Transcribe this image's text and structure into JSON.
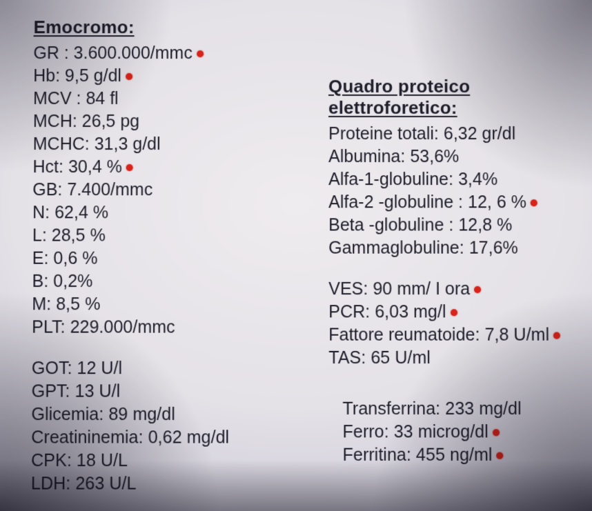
{
  "colors": {
    "text": "#1e1e2a",
    "dot": "#d8231a",
    "bg_center": "#efecef",
    "bg_edge": "#5a5872"
  },
  "typography": {
    "heading_fontsize": 26,
    "row_fontsize": 25,
    "font_family": "Arial"
  },
  "left": {
    "section1_title": "Emocromo:",
    "rows1": [
      {
        "label": "GR :",
        "value": "3.600.000/mmc",
        "flag": true
      },
      {
        "label": "Hb:",
        "value": "9,5 g/dl",
        "flag": true
      },
      {
        "label": "MCV :",
        "value": "84 fl",
        "flag": false
      },
      {
        "label": "MCH:",
        "value": "26,5 pg",
        "flag": false
      },
      {
        "label": "MCHC:",
        "value": "31,3 g/dl",
        "flag": false
      },
      {
        "label": "Hct:",
        "value": "30,4 %",
        "flag": true
      },
      {
        "label": "GB:",
        "value": "7.400/mmc",
        "flag": false
      },
      {
        "label": "N:",
        "value": "62,4 %",
        "flag": false
      },
      {
        "label": "L:",
        "value": "28,5 %",
        "flag": false
      },
      {
        "label": "E:",
        "value": "0,6 %",
        "flag": false
      },
      {
        "label": "B:",
        "value": "0,2%",
        "flag": false
      },
      {
        "label": "M:",
        "value": "8,5 %",
        "flag": false
      },
      {
        "label": "PLT:",
        "value": "229.000/mmc",
        "flag": false
      }
    ],
    "rows2": [
      {
        "label": "GOT:",
        "value": "12 U/l",
        "flag": false
      },
      {
        "label": "GPT:",
        "value": "13 U/l",
        "flag": false
      },
      {
        "label": "Glicemia:",
        "value": "89 mg/dl",
        "flag": false
      },
      {
        "label": "Creatininemia:",
        "value": "0,62 mg/dl",
        "flag": false
      },
      {
        "label": "CPK:",
        "value": "18 U/L",
        "flag": false
      },
      {
        "label": "LDH:",
        "value": "263 U/L",
        "flag": false
      }
    ]
  },
  "right": {
    "section1_title": "Quadro proteico elettroforetico:",
    "rows1": [
      {
        "label": "Proteine totali:",
        "value": "6,32 gr/dl",
        "flag": false
      },
      {
        "label": "Albumina:",
        "value": "53,6%",
        "flag": false
      },
      {
        "label": "Alfa-1-globuline:",
        "value": "3,4%",
        "flag": false
      },
      {
        "label": "Alfa-2 -globuline :",
        "value": "12, 6 %",
        "flag": true
      },
      {
        "label": "Beta -globuline  :",
        "value": "12,8 %",
        "flag": false
      },
      {
        "label": "Gammaglobuline:",
        "value": "17,6%",
        "flag": false
      }
    ],
    "rows2": [
      {
        "label": "VES:",
        "value": "90 mm/ I ora",
        "flag": true
      },
      {
        "label": "PCR:",
        "value": "6,03 mg/l",
        "flag": true
      },
      {
        "label": "Fattore reumatoide:",
        "value": "7,8 U/ml",
        "flag": true
      },
      {
        "label": "TAS:",
        "value": "65 U/ml",
        "flag": false
      }
    ],
    "rows3": [
      {
        "label": "Transferrina:",
        "value": "233 mg/dl",
        "flag": false
      },
      {
        "label": "Ferro:",
        "value": "33 microg/dl",
        "flag": true
      },
      {
        "label": "Ferritina:",
        "value": "455 ng/ml",
        "flag": true
      }
    ]
  }
}
